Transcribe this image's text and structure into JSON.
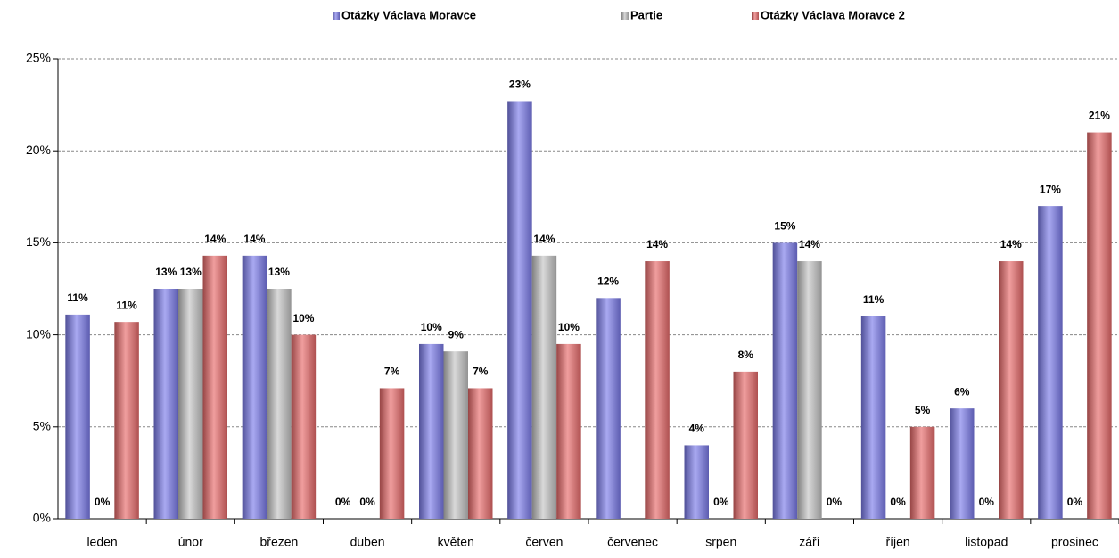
{
  "chart_data": {
    "type": "bar",
    "categories": [
      "leden",
      "únor",
      "březen",
      "duben",
      "květen",
      "červen",
      "červenec",
      "srpen",
      "září",
      "říjen",
      "listopad",
      "prosinec"
    ],
    "series": [
      {
        "name": "Otázky Václava Moravce",
        "color": "#7b7bea",
        "values": [
          11.1,
          12.5,
          14.3,
          0,
          9.5,
          22.7,
          12,
          4,
          15,
          11,
          6,
          17
        ],
        "value_labels": [
          "11%",
          "13%",
          "14%",
          "0%",
          "10%",
          "23%",
          "12%",
          "4%",
          "15%",
          "11%",
          "6%",
          "17%"
        ]
      },
      {
        "name": "Partie",
        "color": "#c4c4c4",
        "values": [
          0,
          12.5,
          12.5,
          0,
          9.1,
          14.3,
          null,
          0,
          14,
          0,
          0,
          0
        ],
        "value_labels": [
          "0%",
          "13%",
          "13%",
          "0%",
          "9%",
          "14%",
          null,
          "0%",
          "14%",
          "0%",
          "0%",
          "0%"
        ]
      },
      {
        "name": "Otázky Václava Moravce 2",
        "color": "#e86a6a",
        "values": [
          10.7,
          14.3,
          10,
          7.1,
          7.1,
          9.5,
          14,
          8,
          0,
          5,
          14,
          21
        ],
        "value_labels": [
          "11%",
          "14%",
          "10%",
          "7%",
          "7%",
          "10%",
          "14%",
          "8%",
          "0%",
          "5%",
          "14%",
          "21%"
        ]
      }
    ],
    "ylim": [
      0,
      25
    ],
    "yticks": [
      {
        "value": 0,
        "label": "0%"
      },
      {
        "value": 5,
        "label": "5%"
      },
      {
        "value": 10,
        "label": "10%"
      },
      {
        "value": 15,
        "label": "15%"
      },
      {
        "value": 20,
        "label": "20%"
      },
      {
        "value": 25,
        "label": "25%"
      }
    ],
    "grid": true,
    "legend": "top"
  }
}
